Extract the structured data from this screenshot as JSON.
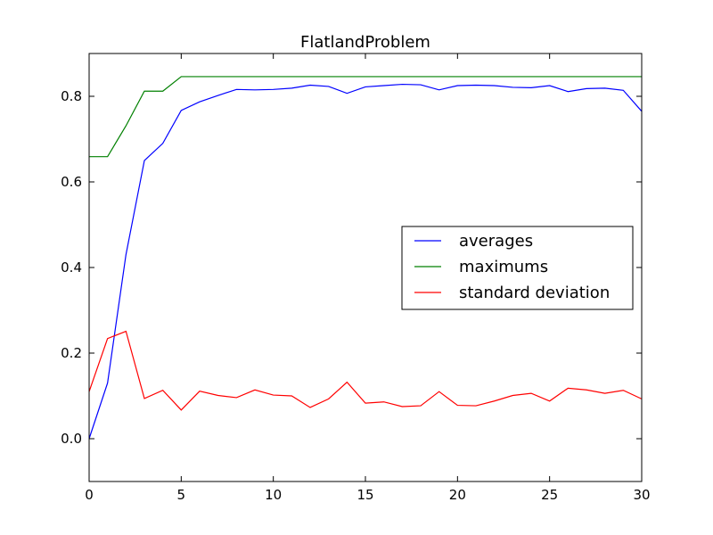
{
  "chart_data": {
    "type": "line",
    "title": "FlatlandProblem",
    "xlabel": "",
    "ylabel": "",
    "xlim": [
      0,
      30
    ],
    "ylim": [
      -0.1,
      0.9
    ],
    "x_ticks": [
      0,
      5,
      10,
      15,
      20,
      25,
      30
    ],
    "y_ticks": [
      0.0,
      0.2,
      0.4,
      0.6,
      0.8
    ],
    "y_tick_labels": [
      "0.0",
      "0.2",
      "0.4",
      "0.6",
      "0.8"
    ],
    "grid": false,
    "legend_position": "center-right",
    "x": [
      0,
      1,
      2,
      3,
      4,
      5,
      6,
      7,
      8,
      9,
      10,
      11,
      12,
      13,
      14,
      15,
      16,
      17,
      18,
      19,
      20,
      21,
      22,
      23,
      24,
      25,
      26,
      27,
      28,
      29,
      30
    ],
    "series": [
      {
        "name": "averages",
        "color": "#0000ff",
        "values": [
          0.0,
          0.13,
          0.43,
          0.65,
          0.69,
          0.767,
          0.787,
          0.802,
          0.816,
          0.815,
          0.816,
          0.819,
          0.826,
          0.823,
          0.807,
          0.822,
          0.825,
          0.828,
          0.827,
          0.815,
          0.825,
          0.826,
          0.825,
          0.821,
          0.82,
          0.825,
          0.811,
          0.818,
          0.819,
          0.814,
          0.765
        ]
      },
      {
        "name": "maximums",
        "color": "#008000",
        "values": [
          0.659,
          0.659,
          0.731,
          0.812,
          0.812,
          0.846,
          0.846,
          0.846,
          0.846,
          0.846,
          0.846,
          0.846,
          0.846,
          0.846,
          0.846,
          0.846,
          0.846,
          0.846,
          0.846,
          0.846,
          0.846,
          0.846,
          0.846,
          0.846,
          0.846,
          0.846,
          0.846,
          0.846,
          0.846,
          0.846,
          0.846
        ]
      },
      {
        "name": "standard deviation",
        "color": "#ff0000",
        "values": [
          0.11,
          0.234,
          0.251,
          0.094,
          0.113,
          0.067,
          0.111,
          0.101,
          0.096,
          0.114,
          0.102,
          0.1,
          0.073,
          0.093,
          0.132,
          0.083,
          0.086,
          0.075,
          0.077,
          0.11,
          0.078,
          0.077,
          0.088,
          0.101,
          0.106,
          0.088,
          0.118,
          0.114,
          0.106,
          0.113,
          0.093
        ]
      }
    ]
  }
}
